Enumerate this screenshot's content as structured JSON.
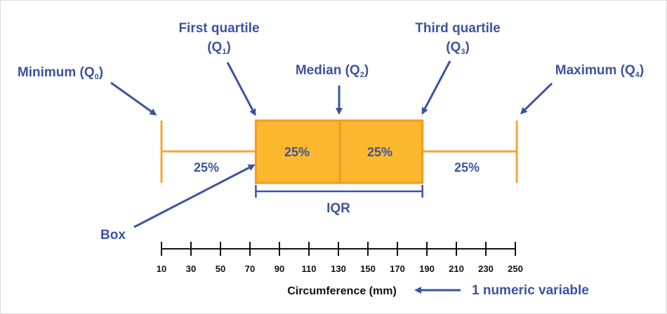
{
  "labels": {
    "first_quartile": "First quartile",
    "first_quartile_sym": "(Q",
    "first_quartile_sub": "1",
    "third_quartile": "Third quartile",
    "third_quartile_sym": "(Q",
    "third_quartile_sub": "3",
    "minimum": "Minimum (Q",
    "minimum_sub": "0",
    "median": "Median (Q",
    "median_sub": "2",
    "maximum": "Maximum (Q",
    "maximum_sub": "4",
    "close_paren": ")",
    "box": "Box",
    "iqr": "IQR",
    "pct_left": "25%",
    "pct_box_left": "25%",
    "pct_box_right": "25%",
    "pct_right": "25%",
    "axis_title": "Circumference (mm)",
    "variable_note": "1 numeric variable"
  },
  "colors": {
    "box_fill": "#fbb82f",
    "box_stroke": "#f39a24",
    "whisker": "#f6a53a",
    "label_blue": "#3d53a0",
    "axis": "#111111"
  },
  "chart_data": {
    "type": "boxplot",
    "xlabel": "Circumference (mm)",
    "ticks": [
      10,
      30,
      50,
      70,
      90,
      110,
      130,
      150,
      170,
      190,
      210,
      230,
      250
    ],
    "xlim": [
      10,
      250
    ],
    "min": 10,
    "q1": 74,
    "median": 131,
    "q3": 187,
    "max": 251
  }
}
